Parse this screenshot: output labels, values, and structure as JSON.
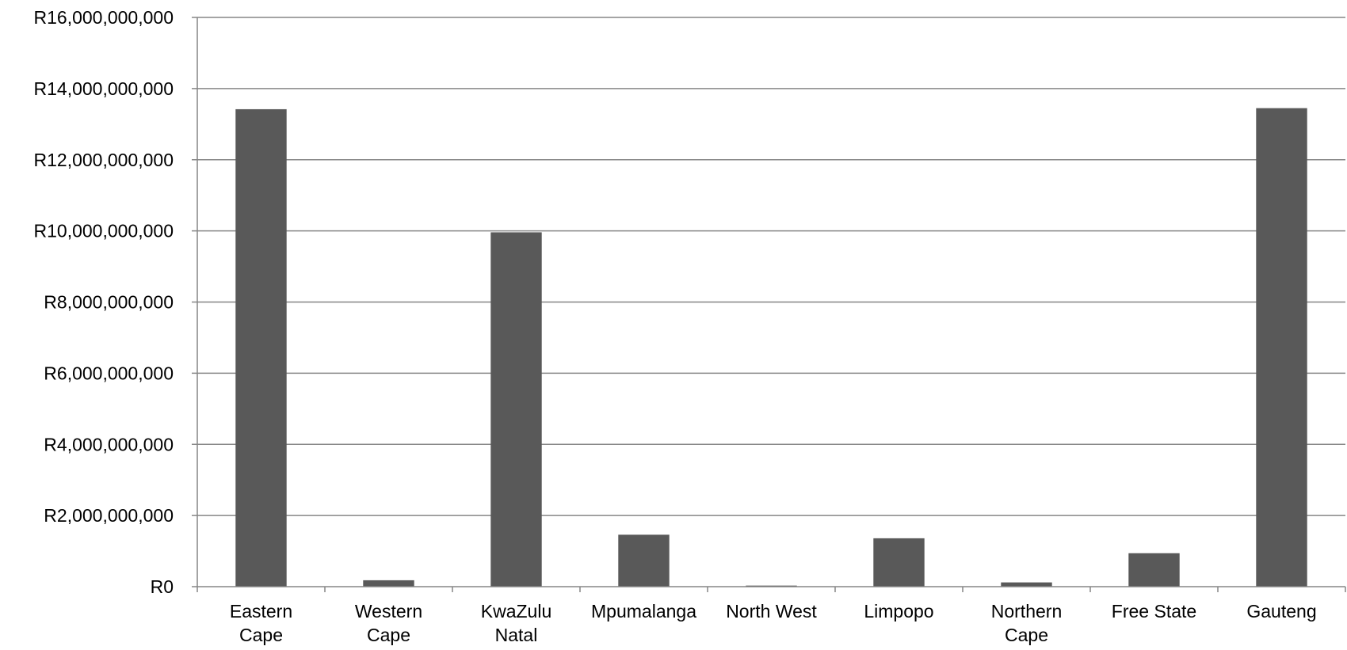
{
  "chart_data": {
    "type": "bar",
    "title": "",
    "xlabel": "",
    "ylabel": "",
    "categories": [
      "Eastern Cape",
      "Western Cape",
      "KwaZulu Natal",
      "Mpumalanga",
      "North West",
      "Limpopo",
      "Northern Cape",
      "Free State",
      "Gauteng"
    ],
    "category_lines": [
      [
        "Eastern",
        "Cape"
      ],
      [
        "Western",
        "Cape"
      ],
      [
        "KwaZulu",
        "Natal"
      ],
      [
        "Mpumalanga"
      ],
      [
        "North West"
      ],
      [
        "Limpopo"
      ],
      [
        "Northern",
        "Cape"
      ],
      [
        "Free State"
      ],
      [
        "Gauteng"
      ]
    ],
    "values": [
      13420000000,
      180000000,
      9960000000,
      1460000000,
      30000000,
      1360000000,
      120000000,
      940000000,
      13450000000
    ],
    "ylim": [
      0,
      16000000000
    ],
    "y_ticks": [
      0,
      2000000000,
      4000000000,
      6000000000,
      8000000000,
      10000000000,
      12000000000,
      14000000000,
      16000000000
    ],
    "y_tick_labels": [
      "R0",
      "R2,000,000,000",
      "R4,000,000,000",
      "R6,000,000,000",
      "R8,000,000,000",
      "R10,000,000,000",
      "R12,000,000,000",
      "R14,000,000,000",
      "R16,000,000,000"
    ],
    "grid": true,
    "legend": "none",
    "colors": {
      "bar": "#595959",
      "grid": "#868686",
      "axis": "#868686"
    }
  }
}
